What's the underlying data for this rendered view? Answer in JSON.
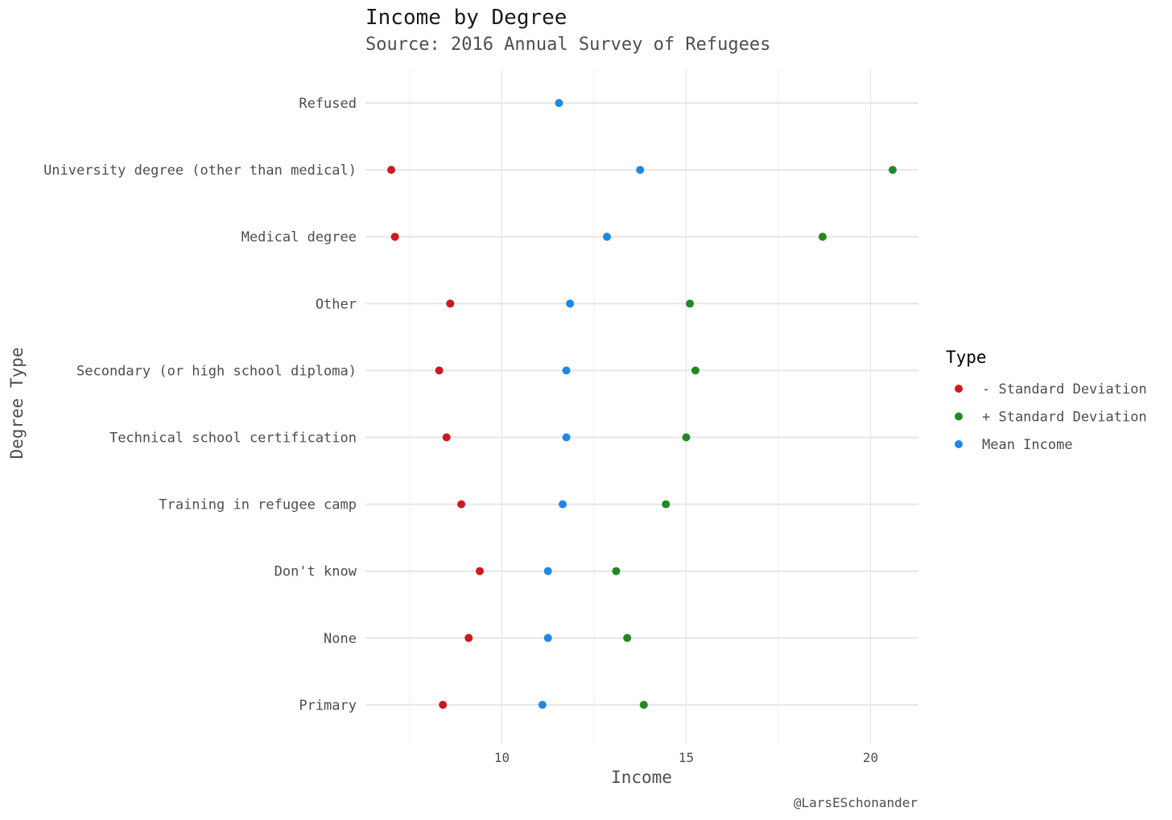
{
  "chart_data": {
    "type": "scatter",
    "title": "Income by Degree",
    "subtitle": "Source: 2016 Annual Survey of Refugees",
    "xlabel": "Income",
    "ylabel": "Degree Type",
    "caption": "@LarsESchonander",
    "xlim": [
      6.3,
      21.3
    ],
    "x_ticks": [
      10,
      15,
      20
    ],
    "x_minor_ticks": [
      7.5,
      12.5,
      17.5
    ],
    "grid": true,
    "legend_position": "right",
    "legend_title": "Type",
    "categories": [
      "Refused",
      "University degree (other than medical)",
      "Medical degree",
      "Other",
      "Secondary (or high school diploma)",
      "Technical school certification",
      "Training in refugee camp",
      "Don't know",
      "None",
      "Primary"
    ],
    "series": [
      {
        "name": "- Standard Deviation",
        "color": "#cc1a1f",
        "values": [
          null,
          7.0,
          7.1,
          8.6,
          8.3,
          8.5,
          8.9,
          9.4,
          9.1,
          8.4
        ]
      },
      {
        "name": "+ Standard Deviation",
        "color": "#1f8a24",
        "values": [
          null,
          20.6,
          18.7,
          15.1,
          15.25,
          15.0,
          14.45,
          13.1,
          13.4,
          13.85
        ]
      },
      {
        "name": "Mean Income",
        "color": "#1e88e5",
        "values": [
          11.55,
          13.75,
          12.85,
          11.85,
          11.75,
          11.75,
          11.65,
          11.25,
          11.25,
          11.1
        ]
      }
    ]
  }
}
